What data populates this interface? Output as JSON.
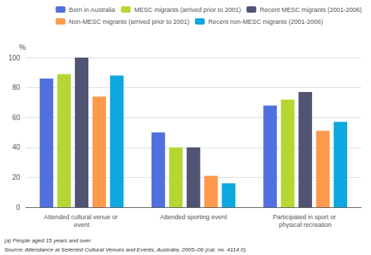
{
  "chart_data": {
    "type": "bar",
    "categories": [
      "Attended cultural venue or event",
      "Attended sporting event",
      "Participated in sport or physical recreation"
    ],
    "series": [
      {
        "name": "Born in Australia",
        "values": [
          86,
          50,
          68
        ]
      },
      {
        "name": "MESC migrants (arrived prior to 2001)",
        "values": [
          89,
          40,
          72
        ]
      },
      {
        "name": "Recent MESC migrants (2001-2006)",
        "values": [
          100,
          40,
          77
        ]
      },
      {
        "name": "Non-MESC migrants (arrived prior to 2001)",
        "values": [
          74,
          21,
          51
        ]
      },
      {
        "name": "Recent non-MESC migrants (2001-2006)",
        "values": [
          88,
          16,
          57
        ]
      }
    ],
    "ylabel": "%",
    "ylim": [
      0,
      100
    ],
    "yticks": [
      0,
      20,
      40,
      60,
      80,
      100
    ],
    "grid": true,
    "legend": "upper right",
    "annotations": [
      "(a) People aged 15 years and over.",
      "Source: Attendance at Selected Cultural Venues and Events, Australia, 2005–06 (cat. no. 4114.0)."
    ]
  }
}
